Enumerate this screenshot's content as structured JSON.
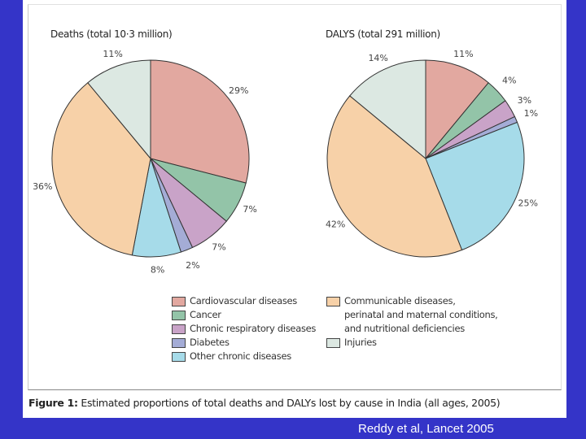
{
  "chart_data": [
    {
      "type": "pie",
      "title": "Deaths (total 10·3 million)",
      "categories": [
        "Cardiovascular diseases",
        "Cancer",
        "Chronic respiratory diseases",
        "Diabetes",
        "Other chronic diseases",
        "Communicable diseases, perinatal and maternal conditions, and nutritional deficiencies",
        "Injuries"
      ],
      "values": [
        29,
        7,
        7,
        2,
        8,
        36,
        11
      ],
      "labels": [
        "29%",
        "7%",
        "7%",
        "2%",
        "8%",
        "36%",
        "11%"
      ]
    },
    {
      "type": "pie",
      "title": "DALYS (total 291 million)",
      "categories": [
        "Cardiovascular diseases",
        "Cancer",
        "Chronic respiratory diseases",
        "Diabetes",
        "Other chronic diseases",
        "Communicable diseases, perinatal and maternal conditions, and nutritional deficiencies",
        "Injuries"
      ],
      "values": [
        11,
        4,
        3,
        1,
        25,
        42,
        14
      ],
      "labels": [
        "11%",
        "4%",
        "3%",
        "1%",
        "25%",
        "42%",
        "14%"
      ]
    }
  ],
  "colors": [
    "#e2a8a0",
    "#93c4a8",
    "#c9a3c8",
    "#a4acd6",
    "#a6dbe9",
    "#f7d1a8",
    "#dce8e2"
  ],
  "legend": {
    "left": [
      "Cardiovascular diseases",
      "Cancer",
      "Chronic respiratory diseases",
      "Diabetes",
      "Other chronic diseases"
    ],
    "right_lines": [
      "Communicable diseases,",
      "perinatal and maternal conditions,",
      "and nutritional deficiencies"
    ],
    "injuries": "Injuries"
  },
  "caption": {
    "label": "Figure 1:",
    "text": " Estimated proportions of total deaths and DALYs lost by cause in India (all ages, 2005)"
  },
  "credit": "Reddy et al, Lancet 2005"
}
